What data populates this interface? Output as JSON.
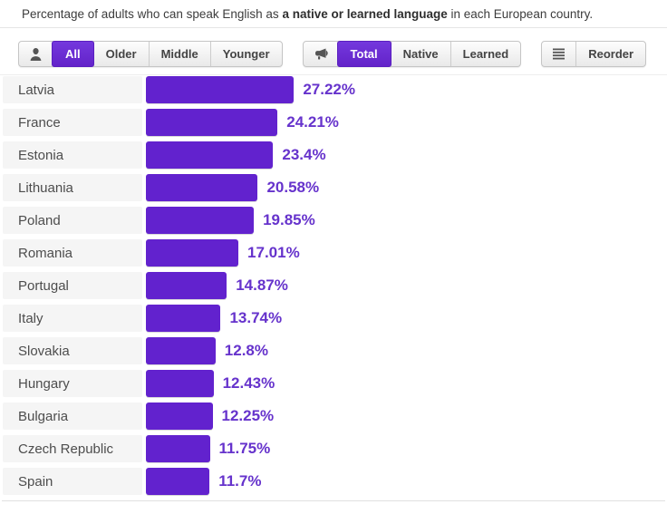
{
  "title": {
    "prefix": "Percentage of adults who can speak English as ",
    "bold": "a native or learned language",
    "suffix": " in each European country."
  },
  "toolbar": {
    "groups": [
      {
        "icon": "person-icon",
        "buttons": [
          {
            "label": "All",
            "selected": true
          },
          {
            "label": "Older",
            "selected": false
          },
          {
            "label": "Middle",
            "selected": false
          },
          {
            "label": "Younger",
            "selected": false
          }
        ]
      },
      {
        "icon": "megaphone-icon",
        "buttons": [
          {
            "label": "Total",
            "selected": true
          },
          {
            "label": "Native",
            "selected": false
          },
          {
            "label": "Learned",
            "selected": false
          }
        ]
      },
      {
        "icon": "reorder-lines-icon",
        "buttons": [
          {
            "label": "Reorder",
            "selected": false
          }
        ]
      }
    ]
  },
  "chart_data": {
    "type": "bar",
    "orientation": "horizontal",
    "title": "Percentage of adults who can speak English as a native or learned language in each European country.",
    "categories": [
      "Latvia",
      "France",
      "Estonia",
      "Lithuania",
      "Poland",
      "Romania",
      "Portugal",
      "Italy",
      "Slovakia",
      "Hungary",
      "Bulgaria",
      "Czech Republic",
      "Spain"
    ],
    "values": [
      27.22,
      24.21,
      23.4,
      20.58,
      19.85,
      17.01,
      14.87,
      13.74,
      12.8,
      12.43,
      12.25,
      11.75,
      11.7
    ],
    "value_labels": [
      "27.22%",
      "24.21%",
      "23.4%",
      "20.58%",
      "19.85%",
      "17.01%",
      "14.87%",
      "13.74%",
      "12.8%",
      "12.43%",
      "12.25%",
      "11.75%",
      "11.7%"
    ],
    "xlabel": "",
    "ylabel": "",
    "xlim": [
      0,
      30
    ],
    "grid": false,
    "legend": "none",
    "bar_color": "#6222ce"
  },
  "colors": {
    "bar": "#6222ce",
    "value_text": "#6633cc",
    "selected_button_bg": "#6b2bd5",
    "row_label_bg": "#f5f5f5",
    "toolbar_icon": "#555555",
    "title_text": "#3c3c3c"
  }
}
